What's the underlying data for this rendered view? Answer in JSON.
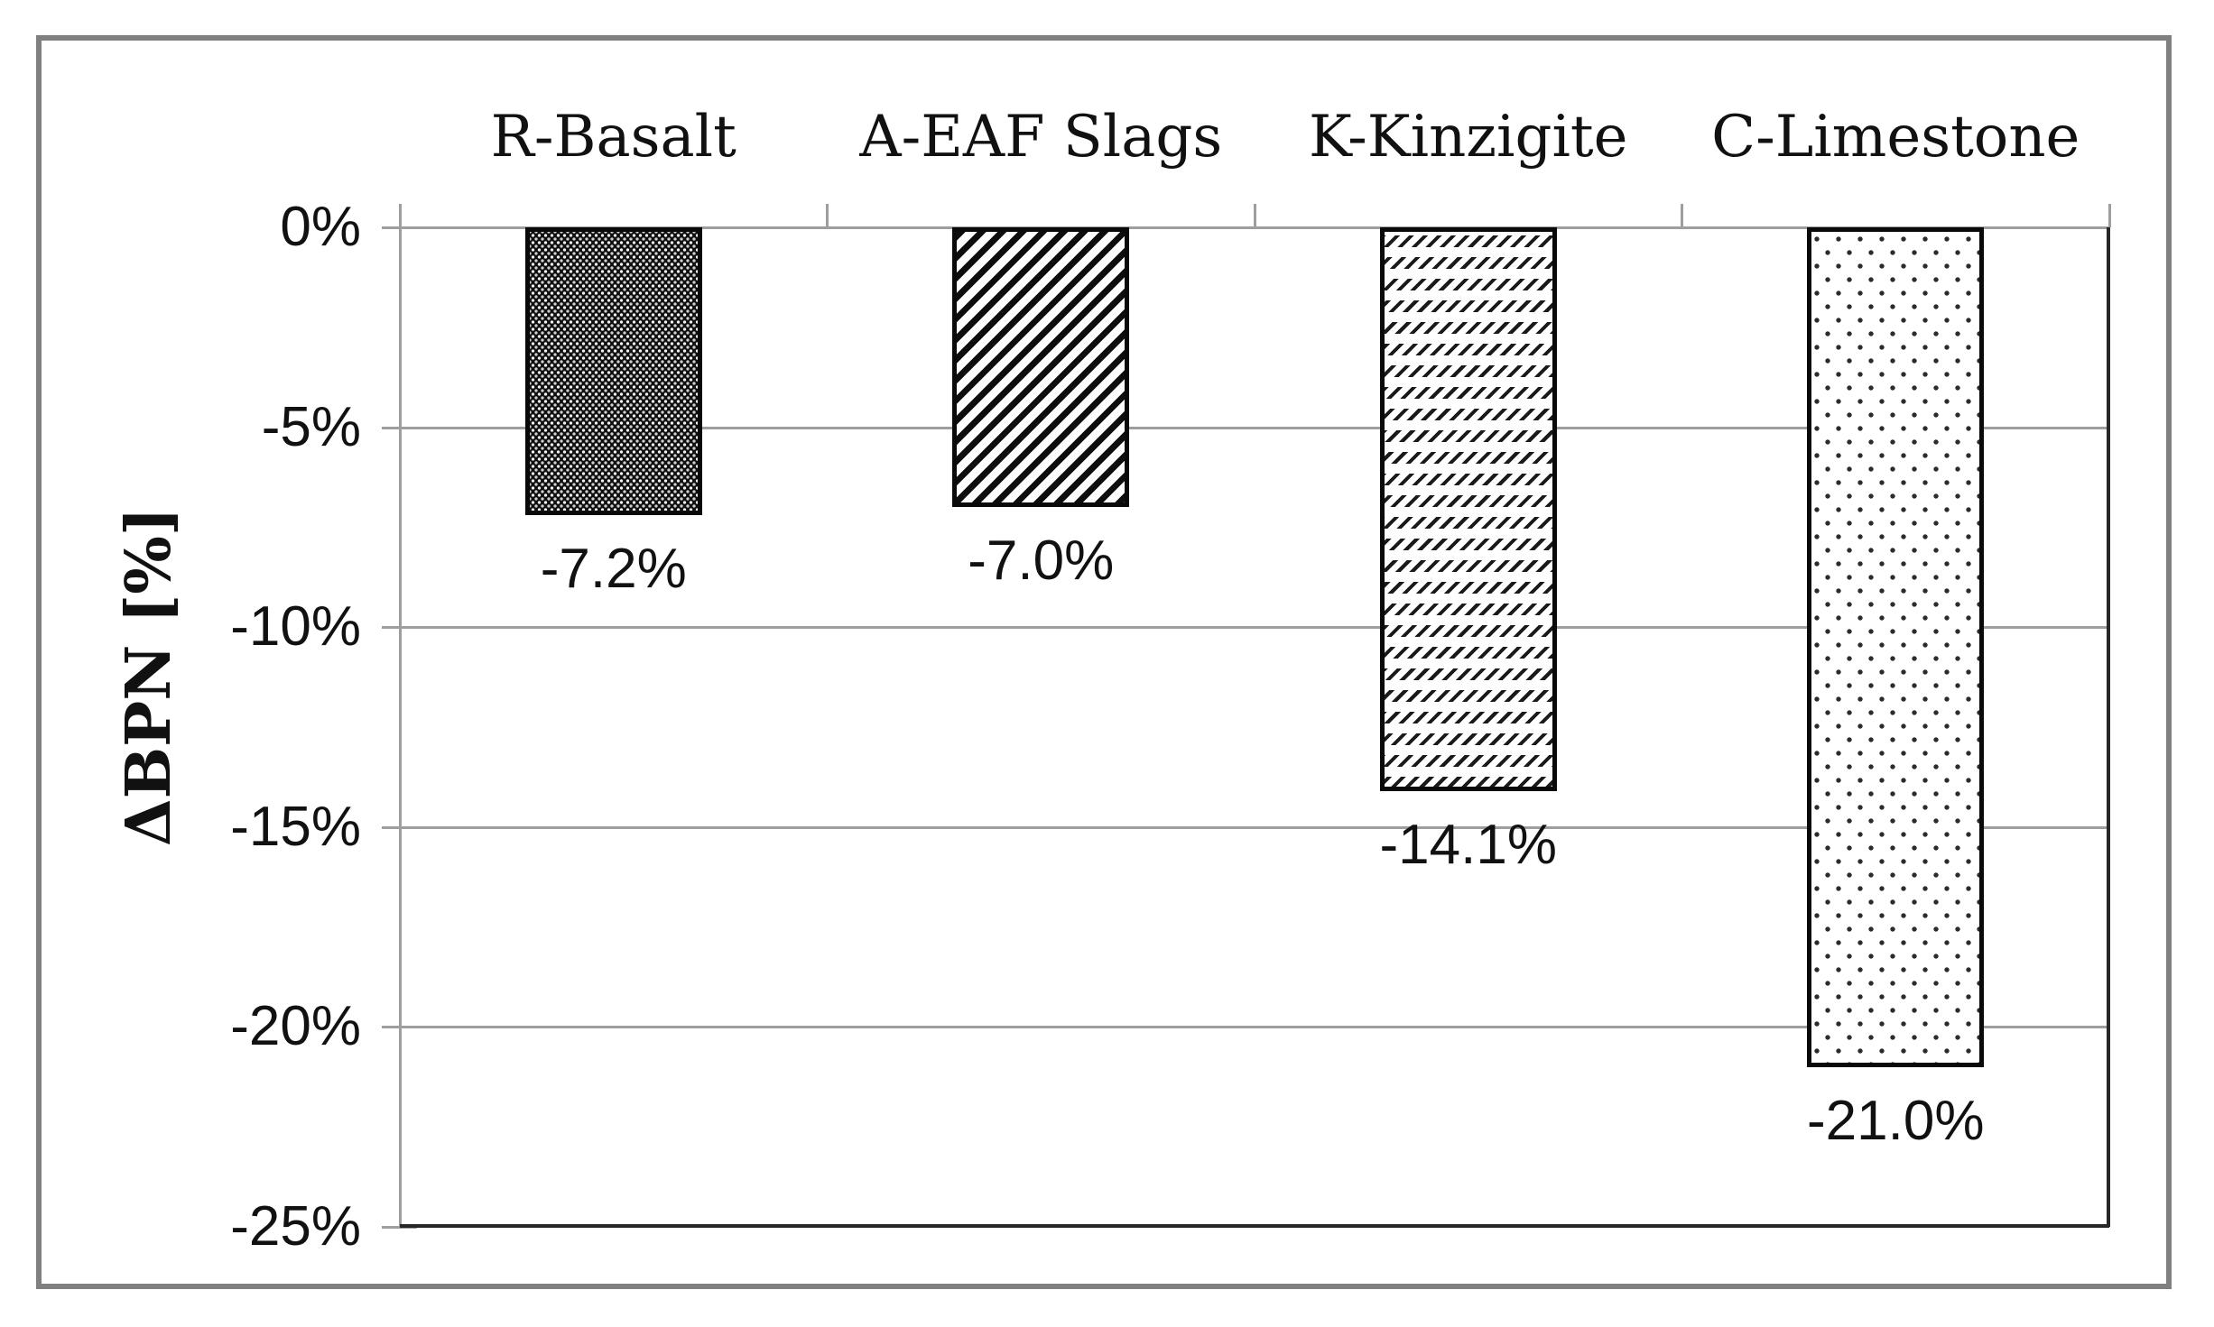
{
  "figure": {
    "frame_color": "#808080",
    "gridline_color": "#9e9e9e",
    "ink_color": "#111111"
  },
  "chart_data": {
    "type": "bar",
    "title": "",
    "xlabel": "",
    "ylabel": "ΔBPN [%]",
    "categories": [
      "R-Basalt",
      "A-EAF Slags",
      "K-Kinzigite",
      "C-Limestone"
    ],
    "values": [
      -7.2,
      -7.0,
      -14.1,
      -21.0
    ],
    "data_labels": [
      "-7.2%",
      "-7.0%",
      "-14.1%",
      "-21.0%"
    ],
    "ylim": [
      -25,
      0
    ],
    "y_ticks": [
      {
        "value": 0,
        "label": "0%"
      },
      {
        "value": -5,
        "label": "-5%"
      },
      {
        "value": -10,
        "label": "-10%"
      },
      {
        "value": -15,
        "label": "-15%"
      },
      {
        "value": -20,
        "label": "-20%"
      },
      {
        "value": -25,
        "label": "-25%"
      }
    ],
    "grid": true,
    "legend": "none",
    "bar_patterns": [
      "dense-dot-weave-dark",
      "diagonal-stripes",
      "dashed-slash-rows",
      "sparse-dots"
    ]
  }
}
